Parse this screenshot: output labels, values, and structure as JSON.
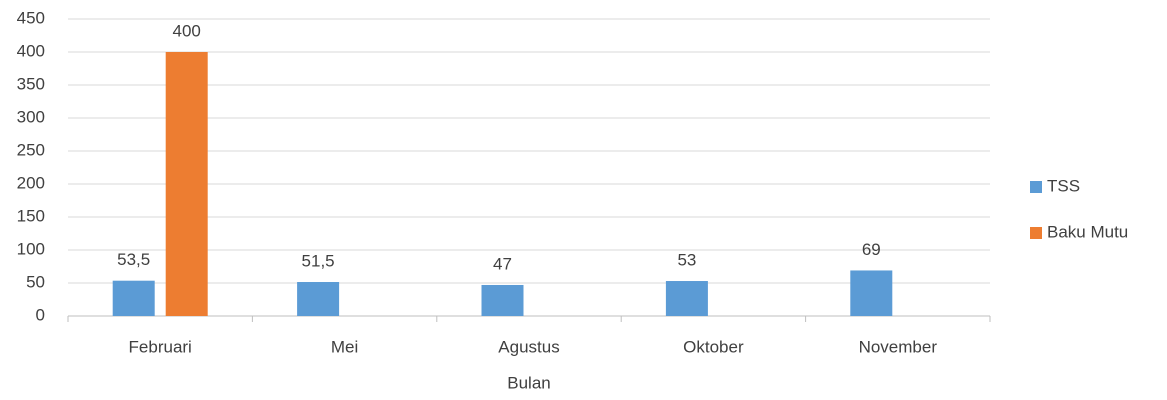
{
  "chart_data": {
    "type": "bar",
    "categories": [
      "Februari",
      "Mei",
      "Agustus",
      "Oktober",
      "November"
    ],
    "series": [
      {
        "name": "TSS",
        "color": "#5b9bd5",
        "values": [
          53.5,
          51.5,
          47,
          53,
          69
        ],
        "value_labels": [
          "53,5",
          "51,5",
          "47",
          "53",
          "69"
        ]
      },
      {
        "name": "Baku Mutu",
        "color": "#ed7d31",
        "values": [
          400,
          null,
          null,
          null,
          null
        ]
      }
    ],
    "xlabel": "Bulan",
    "ylim": [
      0,
      450
    ],
    "yticks": [
      0,
      50,
      100,
      150,
      200,
      250,
      300,
      350,
      400,
      450
    ],
    "grid": true,
    "legend": "right"
  }
}
